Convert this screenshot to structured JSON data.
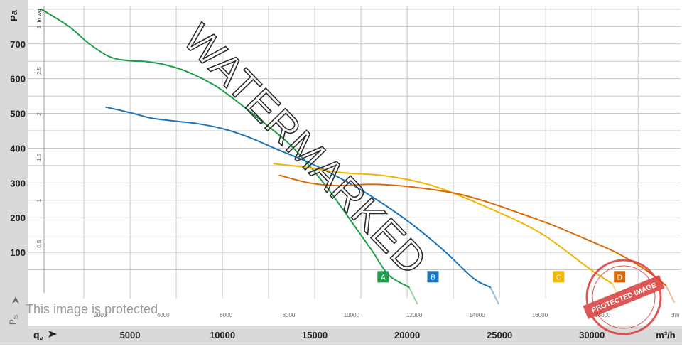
{
  "chart_data": {
    "type": "line",
    "title": "",
    "y_unit_left": "Pa",
    "y_unit_right": "in wg",
    "x_unit_bottom": "m³/h",
    "x_unit_top": "cfm",
    "y_symbol": "P",
    "y_symbol_sub": "fs",
    "x_symbol": "q",
    "x_symbol_sub": "v",
    "ylim": [
      0,
      810
    ],
    "xlim": [
      -500,
      34800
    ],
    "y_ticks": [
      100,
      200,
      300,
      400,
      500,
      600,
      700
    ],
    "y_tick_labels": [
      "100",
      "200",
      "300",
      "400",
      "500",
      "600",
      "700"
    ],
    "x_ticks": [
      5000,
      10000,
      15000,
      20000,
      25000,
      30000
    ],
    "x_tick_labels": [
      "5000",
      "10000",
      "15000",
      "20000",
      "25000",
      "30000"
    ],
    "inwg_ticks": [
      0.5,
      1,
      1.5,
      2,
      2.5,
      3
    ],
    "inwg_tick_labels": [
      "0.5",
      "1",
      "1.5",
      "2",
      "2.5",
      "3"
    ],
    "cfm_ticks": [
      2000,
      4000,
      6000,
      8000,
      10000,
      12000,
      14000,
      16000,
      18000
    ],
    "cfm_tick_labels": [
      "2000",
      "4000",
      "6000",
      "8000",
      "10000",
      "12000",
      "14000",
      "16000",
      "18000"
    ],
    "grid": true,
    "series": [
      {
        "name": "A",
        "color": "#1f9e4a",
        "x": [
          200,
          1700,
          2800,
          3900,
          4900,
          5900,
          6900,
          8100,
          9600,
          10900,
          12200,
          13500,
          14700,
          15900,
          17100,
          18100,
          19000,
          20100
        ],
        "y": [
          800,
          750,
          700,
          663,
          652,
          649,
          640,
          620,
          580,
          530,
          475,
          418,
          350,
          270,
          180,
          105,
          35,
          0
        ]
      },
      {
        "name": "B",
        "color": "#1c75bc",
        "x": [
          3700,
          5100,
          6100,
          7400,
          8700,
          10100,
          11500,
          12900,
          14500,
          15900,
          17500,
          19200,
          20700,
          22100,
          23600,
          24500
        ],
        "y": [
          518,
          501,
          487,
          478,
          470,
          455,
          430,
          398,
          363,
          327,
          280,
          222,
          163,
          100,
          25,
          0
        ]
      },
      {
        "name": "C",
        "color": "#f4b400",
        "x": [
          12800,
          14500,
          16400,
          18400,
          20000,
          21500,
          23000,
          24500,
          26000,
          27400,
          28700,
          30000,
          31100
        ],
        "y": [
          355,
          345,
          330,
          323,
          310,
          290,
          260,
          226,
          190,
          150,
          100,
          48,
          10
        ]
      },
      {
        "name": "D",
        "color": "#d96b06",
        "x": [
          13100,
          14700,
          16300,
          18000,
          19600,
          21200,
          22800,
          24400,
          26100,
          27800,
          29600,
          31300,
          32900,
          34000
        ],
        "y": [
          322,
          300,
          292,
          296,
          292,
          282,
          268,
          244,
          213,
          180,
          140,
          100,
          50,
          5
        ]
      }
    ],
    "series_badges": [
      {
        "label": "A",
        "x": 18700,
        "y": 30,
        "color": "#1f9e4a"
      },
      {
        "label": "B",
        "x": 21400,
        "y": 30,
        "color": "#1c75bc"
      },
      {
        "label": "C",
        "x": 28200,
        "y": 30,
        "color": "#f4b400"
      },
      {
        "label": "D",
        "x": 31500,
        "y": 30,
        "color": "#d96b06"
      }
    ]
  },
  "watermark": {
    "main_text": "WATERMARKED",
    "protected_text": "This image is protected",
    "stamp_text": "PROTECTED IMAGE",
    "color_gray": "#2a2a2a",
    "color_stamp": "#d93a3a"
  },
  "colors": {
    "axis_band": "#d9d9d9",
    "grid": "#c8c8c8",
    "axis_text": "#222222",
    "small_text": "#6e6e6e"
  }
}
